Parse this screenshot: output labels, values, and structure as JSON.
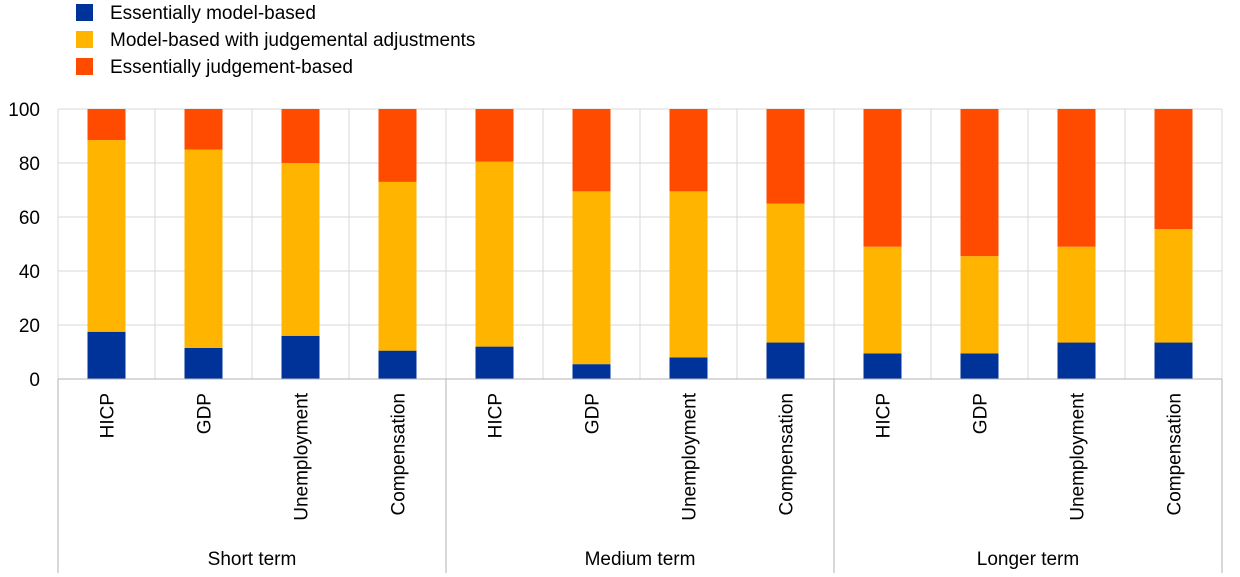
{
  "chart_data": {
    "type": "bar",
    "stacked": true,
    "title": "",
    "xlabel": "",
    "ylabel": "",
    "ylim": [
      0,
      100
    ],
    "yticks": [
      0,
      20,
      40,
      60,
      80,
      100
    ],
    "grid": true,
    "legend_position": "top-left",
    "groups": [
      {
        "label": "Short term",
        "categories": [
          "HICP",
          "GDP",
          "Unemployment",
          "Compensation"
        ]
      },
      {
        "label": "Medium term",
        "categories": [
          "HICP",
          "GDP",
          "Unemployment",
          "Compensation"
        ]
      },
      {
        "label": "Longer term",
        "categories": [
          "HICP",
          "GDP",
          "Unemployment",
          "Compensation"
        ]
      }
    ],
    "categories": [
      "HICP",
      "GDP",
      "Unemployment",
      "Compensation",
      "HICP",
      "GDP",
      "Unemployment",
      "Compensation",
      "HICP",
      "GDP",
      "Unemployment",
      "Compensation"
    ],
    "series": [
      {
        "name": "Essentially model-based",
        "color": "#003399",
        "values": [
          17.5,
          11.5,
          16,
          10.5,
          12,
          5.5,
          8,
          13.5,
          9.5,
          9.5,
          13.5,
          13.5
        ]
      },
      {
        "name": "Model-based with judgemental adjustments",
        "color": "#FFB400",
        "values": [
          71,
          73.5,
          64,
          62.5,
          68.5,
          64,
          61.5,
          51.5,
          39.5,
          36,
          35.5,
          42
        ]
      },
      {
        "name": "Essentially judgement-based",
        "color": "#FF4B00",
        "values": [
          11.5,
          15,
          20,
          27,
          19.5,
          30.5,
          30.5,
          35,
          51,
          54.5,
          51,
          44.5
        ]
      }
    ]
  }
}
